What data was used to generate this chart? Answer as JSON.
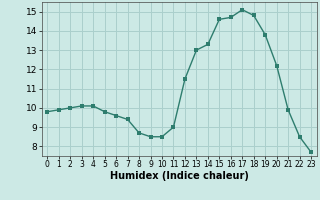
{
  "x": [
    0,
    1,
    2,
    3,
    4,
    5,
    6,
    7,
    8,
    9,
    10,
    11,
    12,
    13,
    14,
    15,
    16,
    17,
    18,
    19,
    20,
    21,
    22,
    23
  ],
  "y": [
    9.8,
    9.9,
    10.0,
    10.1,
    10.1,
    9.8,
    9.6,
    9.4,
    8.7,
    8.5,
    8.5,
    9.0,
    11.5,
    13.0,
    13.3,
    14.6,
    14.7,
    15.1,
    14.8,
    13.8,
    12.2,
    9.9,
    8.5,
    7.7
  ],
  "xlabel": "Humidex (Indice chaleur)",
  "ylim": [
    7.5,
    15.5
  ],
  "yticks": [
    8,
    9,
    10,
    11,
    12,
    13,
    14,
    15
  ],
  "xticks": [
    0,
    1,
    2,
    3,
    4,
    5,
    6,
    7,
    8,
    9,
    10,
    11,
    12,
    13,
    14,
    15,
    16,
    17,
    18,
    19,
    20,
    21,
    22,
    23
  ],
  "line_color": "#2e7d6e",
  "marker_color": "#2e7d6e",
  "bg_color": "#cce9e5",
  "grid_color": "#aacfcc"
}
